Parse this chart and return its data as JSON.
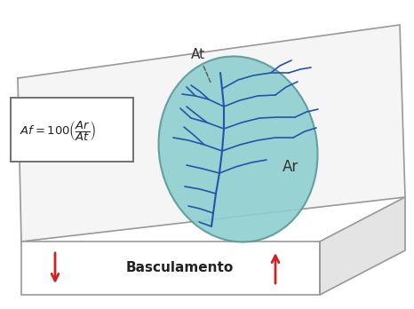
{
  "bg_color": "#ffffff",
  "teal_fill": "#8ecfcf",
  "teal_edge": "#5a9898",
  "river_color": "#2255aa",
  "block_edge_color": "#999999",
  "arrow_color": "#cc2222",
  "text_color": "#222222",
  "label_At": "At",
  "label_Ar": "Ar",
  "label_basculamento": "Basculamento",
  "box_face": "#ffffff",
  "box_edge": "#666666",
  "plane_color": "#f8f8f8",
  "right_face_color": "#e4e4e4",
  "top_face_color": "#f5f5f5",
  "front_face_color": "#ffffff"
}
